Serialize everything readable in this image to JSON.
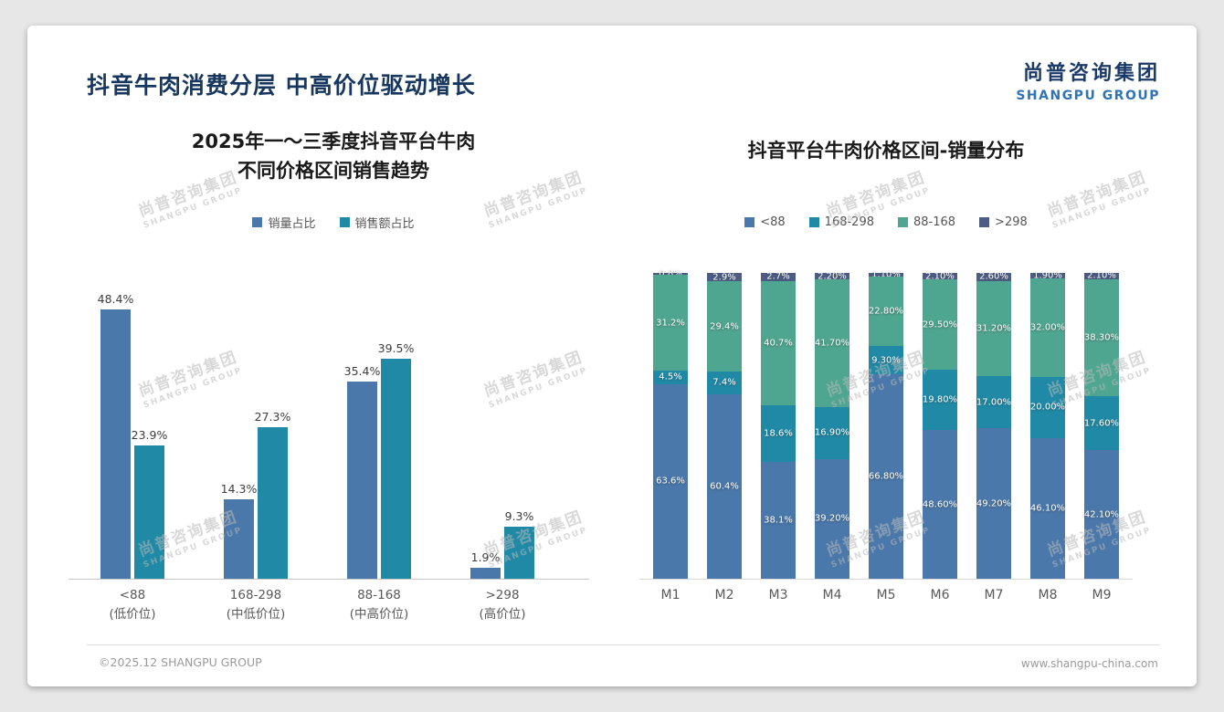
{
  "header": {
    "title": "抖音牛肉消费分层 中高价位驱动增长",
    "logo_cn": "尚普咨询集团",
    "logo_en": "SHANGPU GROUP"
  },
  "watermark": {
    "line1": "尚普咨询集团",
    "line2": "SHANGPU GROUP"
  },
  "footer": {
    "left": "©2025.12 SHANGPU GROUP",
    "right": "www.shangpu-china.com"
  },
  "colors": {
    "volume_blue": "#4a78aa",
    "revenue_teal": "#2089a6",
    "green": "#4fa690",
    "dark_navy": "#4c5c85",
    "title_navy": "#17375e",
    "logo_blue": "#2e74b5"
  },
  "chart_data": [
    {
      "type": "bar",
      "title": "2025年一～三季度抖音平台牛肉 不同价格区间销售趋势",
      "title_lines": [
        "2025年一～三季度抖音平台牛肉",
        "不同价格区间销售趋势"
      ],
      "categories": [
        "<88",
        "168-298",
        "88-168",
        ">298"
      ],
      "category_sublabels": [
        "(低价位)",
        "(中低价位)",
        "(中高价位)",
        "(高价位)"
      ],
      "series": [
        {
          "name": "销量占比",
          "color": "#4a78aa",
          "values": [
            48.4,
            14.3,
            35.4,
            1.9
          ],
          "labels": [
            "48.4%",
            "14.3%",
            "35.4%",
            "1.9%"
          ]
        },
        {
          "name": "销售额占比",
          "color": "#2089a6",
          "values": [
            23.9,
            27.3,
            39.5,
            9.3
          ],
          "labels": [
            "23.9%",
            "27.3%",
            "39.5%",
            "9.3%"
          ]
        }
      ],
      "unit": "%",
      "ylim": [
        0,
        52
      ],
      "grid": false,
      "legend_position": "top"
    },
    {
      "type": "bar",
      "stacked": true,
      "normalized_to_100": true,
      "title": "抖音平台牛肉价格区间-销量分布",
      "categories": [
        "M1",
        "M2",
        "M3",
        "M4",
        "M5",
        "M6",
        "M7",
        "M8",
        "M9"
      ],
      "series": [
        {
          "name": "<88",
          "color": "#4a78aa",
          "values": [
            63.6,
            60.4,
            38.1,
            39.2,
            66.8,
            48.6,
            49.2,
            46.1,
            42.1
          ],
          "labels": [
            "63.6%",
            "60.4%",
            "38.1%",
            "39.20%",
            "66.80%",
            "48.60%",
            "49.20%",
            "46.10%",
            "42.10%"
          ]
        },
        {
          "name": "168-298",
          "color": "#2089a6",
          "values": [
            4.5,
            7.4,
            18.6,
            16.9,
            9.3,
            19.8,
            17.0,
            20.0,
            17.6
          ],
          "labels": [
            "4.5%",
            "7.4%",
            "18.6%",
            "16.90%",
            "9.30%",
            "19.80%",
            "17.00%",
            "20.00%",
            "17.60%"
          ]
        },
        {
          "name": "88-168",
          "color": "#4fa690",
          "values": [
            31.2,
            29.4,
            40.7,
            41.7,
            22.8,
            29.5,
            31.2,
            32.0,
            38.3
          ],
          "labels": [
            "31.2%",
            "29.4%",
            "40.7%",
            "41.70%",
            "22.80%",
            "29.50%",
            "31.20%",
            "32.00%",
            "38.30%"
          ]
        },
        {
          "name": ">298",
          "color": "#4c5c85",
          "values": [
            0.8,
            2.9,
            2.7,
            2.2,
            1.1,
            2.1,
            2.6,
            1.9,
            2.1
          ],
          "labels": [
            "0.8%",
            "2.9%",
            "2.7%",
            "2.20%",
            "1.10%",
            "2.10%",
            "2.60%",
            "1.90%",
            "2.10%"
          ]
        }
      ],
      "unit": "%",
      "ylim": [
        0,
        100
      ],
      "grid": false,
      "legend_position": "top"
    }
  ]
}
